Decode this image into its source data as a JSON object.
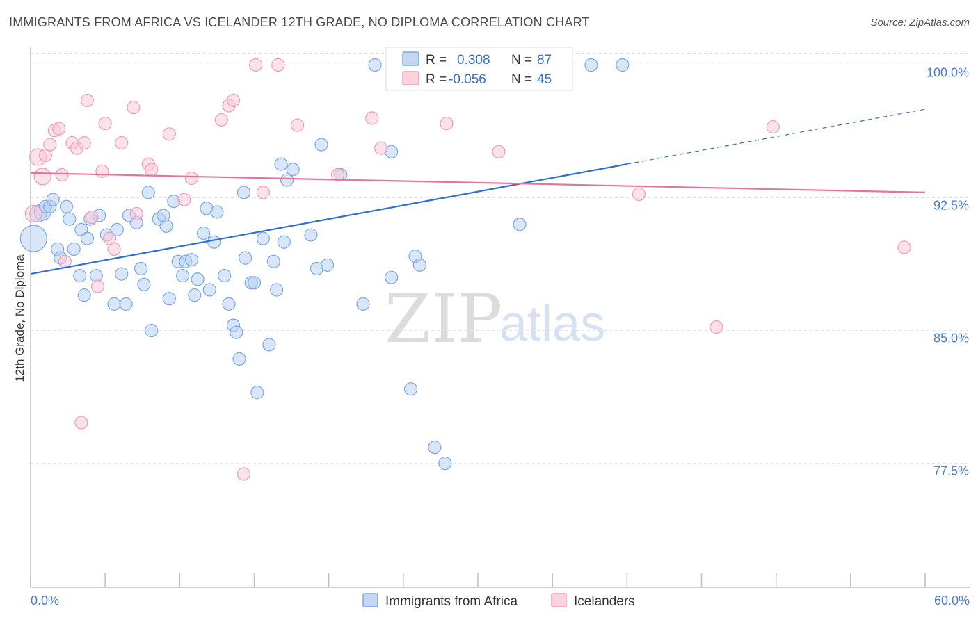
{
  "title": "IMMIGRANTS FROM AFRICA VS ICELANDER 12TH GRADE, NO DIPLOMA CORRELATION CHART",
  "source": "Source: ZipAtlas.com",
  "watermark": {
    "zip": "ZIP",
    "atlas": "atlas"
  },
  "legend": {
    "r_label": "R =",
    "n_label": "N =",
    "entries": [
      {
        "r": "0.308",
        "n": "87",
        "color": "#7ba7e6"
      },
      {
        "r": "-0.056",
        "n": "45",
        "color": "#f29bb6"
      }
    ]
  },
  "chart_data": {
    "type": "scatter",
    "title": "IMMIGRANTS FROM AFRICA VS ICELANDER 12TH GRADE, NO DIPLOMA CORRELATION CHART",
    "xlabel": "",
    "ylabel": "12th Grade, No Diploma",
    "xlim": [
      0,
      60
    ],
    "ylim": [
      70.5,
      101
    ],
    "x_tick_labels": [
      "0.0%",
      "60.0%"
    ],
    "y_ticks": [
      77.5,
      85.0,
      92.5,
      100.0
    ],
    "y_tick_labels": [
      "77.5%",
      "85.0%",
      "92.5%",
      "100.0%"
    ],
    "grid": true,
    "legend_position": "top-center",
    "series": [
      {
        "name": "Immigrants from Africa",
        "color": "#7ba7e6",
        "fill": "#b9d1f3",
        "trend": {
          "x": [
            0,
            40
          ],
          "y": [
            88.2,
            94.4
          ],
          "dashed_to": [
            60,
            97.5
          ]
        },
        "points": [
          [
            0.2,
            90.2
          ],
          [
            0.5,
            91.6
          ],
          [
            0.8,
            91.7
          ],
          [
            1.0,
            92.0
          ],
          [
            1.3,
            92.0
          ],
          [
            1.5,
            92.4
          ],
          [
            1.8,
            89.6
          ],
          [
            2.0,
            89.1
          ],
          [
            2.4,
            92.0
          ],
          [
            2.6,
            91.3
          ],
          [
            2.9,
            89.6
          ],
          [
            3.4,
            90.7
          ],
          [
            3.8,
            90.2
          ],
          [
            3.3,
            88.1
          ],
          [
            3.6,
            87.0
          ],
          [
            4.0,
            91.3
          ],
          [
            4.4,
            88.1
          ],
          [
            4.6,
            91.5
          ],
          [
            5.1,
            90.4
          ],
          [
            5.6,
            86.5
          ],
          [
            5.8,
            90.7
          ],
          [
            6.1,
            88.2
          ],
          [
            6.6,
            91.5
          ],
          [
            6.4,
            86.5
          ],
          [
            7.1,
            91.1
          ],
          [
            7.4,
            88.5
          ],
          [
            7.6,
            87.6
          ],
          [
            7.9,
            92.8
          ],
          [
            8.1,
            85.0
          ],
          [
            8.6,
            91.3
          ],
          [
            8.9,
            91.5
          ],
          [
            9.1,
            90.9
          ],
          [
            9.3,
            86.8
          ],
          [
            9.6,
            92.3
          ],
          [
            9.9,
            88.9
          ],
          [
            10.2,
            88.1
          ],
          [
            10.4,
            88.9
          ],
          [
            10.8,
            89.0
          ],
          [
            11.0,
            87.0
          ],
          [
            11.2,
            87.9
          ],
          [
            11.6,
            90.5
          ],
          [
            11.8,
            91.9
          ],
          [
            12.0,
            87.3
          ],
          [
            12.3,
            90.0
          ],
          [
            12.5,
            91.7
          ],
          [
            13.0,
            88.1
          ],
          [
            13.3,
            86.5
          ],
          [
            13.6,
            85.3
          ],
          [
            13.8,
            84.9
          ],
          [
            14.0,
            83.4
          ],
          [
            14.3,
            92.8
          ],
          [
            14.4,
            89.1
          ],
          [
            14.8,
            87.7
          ],
          [
            15.0,
            87.7
          ],
          [
            15.2,
            81.5
          ],
          [
            15.6,
            90.2
          ],
          [
            16.0,
            84.2
          ],
          [
            16.3,
            88.9
          ],
          [
            16.5,
            87.3
          ],
          [
            16.8,
            94.4
          ],
          [
            17.0,
            90.0
          ],
          [
            17.2,
            93.5
          ],
          [
            17.6,
            94.1
          ],
          [
            18.8,
            90.4
          ],
          [
            19.2,
            88.5
          ],
          [
            19.5,
            95.5
          ],
          [
            19.9,
            88.7
          ],
          [
            20.8,
            93.8
          ],
          [
            22.3,
            86.5
          ],
          [
            23.1,
            100.0
          ],
          [
            24.2,
            88.0
          ],
          [
            24.2,
            95.1
          ],
          [
            24.8,
            100.0
          ],
          [
            25.5,
            81.7
          ],
          [
            25.8,
            89.2
          ],
          [
            26.1,
            88.7
          ],
          [
            26.5,
            100.0
          ],
          [
            27.1,
            78.4
          ],
          [
            27.8,
            77.5
          ],
          [
            30.0,
            100.0
          ],
          [
            32.8,
            91.0
          ],
          [
            33.5,
            100.0
          ],
          [
            33.7,
            100.0
          ],
          [
            33.9,
            100.0
          ],
          [
            35.1,
            100.0
          ],
          [
            37.6,
            100.0
          ],
          [
            39.7,
            100.0
          ]
        ]
      },
      {
        "name": "Icelanders",
        "color": "#f29bb6",
        "fill": "#f8c9d7",
        "trend": {
          "x": [
            0,
            60
          ],
          "y": [
            93.9,
            92.8
          ]
        },
        "points": [
          [
            0.2,
            91.6
          ],
          [
            0.5,
            94.8
          ],
          [
            0.8,
            93.7
          ],
          [
            1.0,
            94.9
          ],
          [
            1.3,
            95.5
          ],
          [
            1.6,
            96.3
          ],
          [
            1.9,
            96.4
          ],
          [
            2.1,
            93.8
          ],
          [
            2.3,
            88.9
          ],
          [
            2.8,
            95.6
          ],
          [
            3.1,
            95.3
          ],
          [
            3.4,
            79.8
          ],
          [
            3.6,
            95.6
          ],
          [
            3.8,
            98.0
          ],
          [
            4.1,
            91.4
          ],
          [
            4.5,
            87.5
          ],
          [
            4.8,
            94.0
          ],
          [
            5.0,
            96.7
          ],
          [
            5.3,
            90.2
          ],
          [
            5.6,
            89.6
          ],
          [
            6.1,
            95.6
          ],
          [
            6.9,
            97.6
          ],
          [
            7.1,
            91.6
          ],
          [
            7.9,
            94.4
          ],
          [
            8.1,
            94.1
          ],
          [
            9.3,
            96.1
          ],
          [
            10.3,
            92.4
          ],
          [
            10.8,
            93.6
          ],
          [
            12.8,
            96.9
          ],
          [
            13.3,
            97.7
          ],
          [
            13.6,
            98.0
          ],
          [
            14.3,
            76.9
          ],
          [
            15.1,
            100.0
          ],
          [
            15.6,
            92.8
          ],
          [
            16.6,
            100.0
          ],
          [
            17.9,
            96.6
          ],
          [
            20.6,
            93.8
          ],
          [
            22.9,
            97.0
          ],
          [
            23.5,
            95.3
          ],
          [
            27.9,
            96.7
          ],
          [
            31.4,
            95.1
          ],
          [
            40.8,
            92.7
          ],
          [
            46.0,
            85.2
          ],
          [
            49.8,
            96.5
          ],
          [
            58.6,
            89.7
          ]
        ]
      }
    ]
  },
  "bottom_legend": [
    {
      "label": "Immigrants from Africa",
      "color": "#7ba7e6",
      "fill": "#c3d7f5"
    },
    {
      "label": "Icelanders",
      "color": "#f29bb6",
      "fill": "#fbd3df"
    }
  ]
}
